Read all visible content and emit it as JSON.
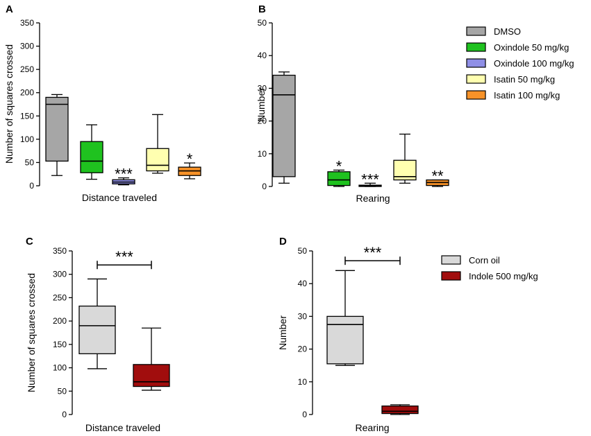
{
  "panels": [
    {
      "letter": "A",
      "type": "box",
      "ylabel": "Number of squares crossed",
      "xlabel": "Distance traveled",
      "ylim": [
        0,
        350
      ],
      "yticks": [
        0,
        50,
        100,
        150,
        200,
        250,
        300,
        350
      ],
      "boxes": [
        {
          "group": "DMSO",
          "whislo": 22,
          "q1": 53,
          "med": 175,
          "q3": 190,
          "whishi": 196,
          "sig": ""
        },
        {
          "group": "Oxindole 50 mg/kg",
          "whislo": 14,
          "q1": 28,
          "med": 53,
          "q3": 95,
          "whishi": 131,
          "sig": ""
        },
        {
          "group": "Oxindole 100 mg/kg",
          "whislo": 2,
          "q1": 4,
          "med": 8,
          "q3": 13,
          "whishi": 17,
          "sig": "***"
        },
        {
          "group": "Isatin 50 mg/kg",
          "whislo": 27,
          "q1": 32,
          "med": 44,
          "q3": 80,
          "whishi": 153,
          "sig": ""
        },
        {
          "group": "Isatin 100 mg/kg",
          "whislo": 15,
          "q1": 22,
          "med": 32,
          "q3": 40,
          "whishi": 49,
          "sig": "*"
        }
      ]
    },
    {
      "letter": "B",
      "type": "box",
      "ylabel": "Number",
      "xlabel": "Rearing",
      "ylim": [
        0,
        50
      ],
      "yticks": [
        0,
        10,
        20,
        30,
        40,
        50
      ],
      "boxes": [
        {
          "group": "DMSO",
          "whislo": 1,
          "q1": 3,
          "med": 28,
          "q3": 34,
          "whishi": 35,
          "sig": ""
        },
        {
          "group": "Oxindole 50 mg/kg",
          "whislo": 0,
          "q1": 0.3,
          "med": 2,
          "q3": 4.5,
          "whishi": 5,
          "sig": "*"
        },
        {
          "group": "Oxindole 100 mg/kg",
          "whislo": 0,
          "q1": 0,
          "med": 0.2,
          "q3": 0.4,
          "whishi": 1,
          "sig": "***"
        },
        {
          "group": "Isatin 50 mg/kg",
          "whislo": 1,
          "q1": 2,
          "med": 3,
          "q3": 8,
          "whishi": 16,
          "sig": ""
        },
        {
          "group": "Isatin 100 mg/kg",
          "whislo": 0,
          "q1": 0.3,
          "med": 1.2,
          "q3": 2,
          "whishi": 2,
          "sig": "**"
        }
      ]
    },
    {
      "letter": "C",
      "type": "box",
      "ylabel": "Number of squares crossed",
      "xlabel": "Distance traveled",
      "ylim": [
        0,
        350
      ],
      "yticks": [
        0,
        50,
        100,
        150,
        200,
        250,
        300,
        350
      ],
      "bracket": {
        "y": 320,
        "label": "***"
      },
      "boxes": [
        {
          "group": "Corn oil",
          "whislo": 98,
          "q1": 130,
          "med": 190,
          "q3": 232,
          "whishi": 290,
          "sig": ""
        },
        {
          "group": "Indole 500 mg/kg",
          "whislo": 52,
          "q1": 60,
          "med": 70,
          "q3": 107,
          "whishi": 185,
          "sig": ""
        }
      ]
    },
    {
      "letter": "D",
      "type": "box",
      "ylabel": "Number",
      "xlabel": "Rearing",
      "ylim": [
        0,
        50
      ],
      "yticks": [
        0,
        10,
        20,
        30,
        40,
        50
      ],
      "bracket": {
        "y": 47,
        "label": "***"
      },
      "boxes": [
        {
          "group": "Corn oil",
          "whislo": 15,
          "q1": 15.5,
          "med": 27.5,
          "q3": 30,
          "whishi": 44,
          "sig": ""
        },
        {
          "group": "Indole 500 mg/kg",
          "whislo": 0,
          "q1": 0.3,
          "med": 1,
          "q3": 2.6,
          "whishi": 3,
          "sig": ""
        }
      ]
    }
  ],
  "legend_top": [
    {
      "label": "DMSO",
      "color": "#a6a6a6"
    },
    {
      "label": "Oxindole 50 mg/kg",
      "color": "#1fc21f"
    },
    {
      "label": "Oxindole 100 mg/kg",
      "color": "#8f8fe6"
    },
    {
      "label": "Isatin 50 mg/kg",
      "color": "#ffffb0"
    },
    {
      "label": "Isatin 100 mg/kg",
      "color": "#f79228"
    }
  ],
  "legend_bottom": [
    {
      "label": "Corn oil",
      "color": "#d9d9d9"
    },
    {
      "label": "Indole 500 mg/kg",
      "color": "#a10d0d"
    }
  ]
}
